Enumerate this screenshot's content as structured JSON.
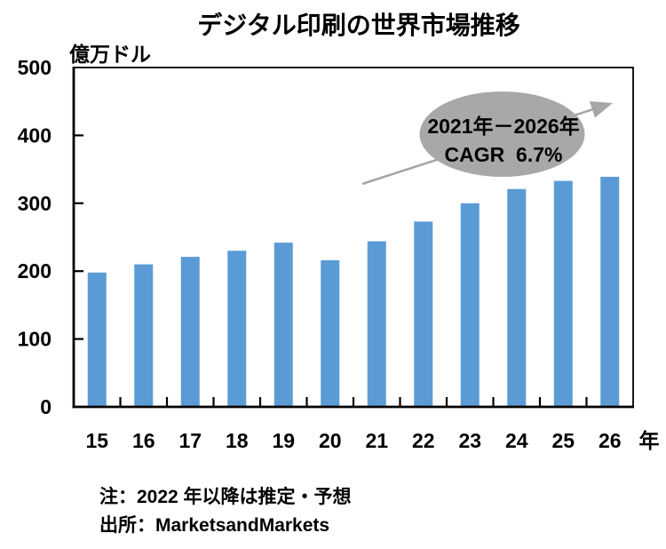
{
  "title": "デジタル印刷の世界市場推移",
  "y_unit_label": "億万ドル",
  "x_unit_label": "年",
  "annotation": {
    "period": "2021年－2026年",
    "cagr": "CAGR  6.7%"
  },
  "notes": {
    "line1": "注：2022 年以降は推定・予想",
    "line2": "出所：MarketsandMarkets"
  },
  "colors": {
    "bar": "#5b9bd5",
    "ellipse": "#a8a8a8",
    "arrow": "#a6a6a6",
    "axis": "#000000"
  },
  "chart_data": {
    "type": "bar",
    "categories": [
      "15",
      "16",
      "17",
      "18",
      "19",
      "20",
      "21",
      "22",
      "23",
      "24",
      "25",
      "26"
    ],
    "values": [
      198,
      210,
      221,
      230,
      242,
      216,
      244,
      273,
      300,
      321,
      333,
      339
    ],
    "title": "デジタル印刷の世界市場推移",
    "xlabel": "年",
    "ylabel": "億万ドル",
    "ylim": [
      0,
      500
    ],
    "yticks": [
      0,
      100,
      200,
      300,
      400,
      500
    ],
    "grid": false,
    "legend": null,
    "annotations": [
      "2021年－2026年",
      "CAGR 6.7%"
    ],
    "footnotes": [
      "注：2022 年以降は推定・予想",
      "出所：MarketsandMarkets"
    ]
  }
}
